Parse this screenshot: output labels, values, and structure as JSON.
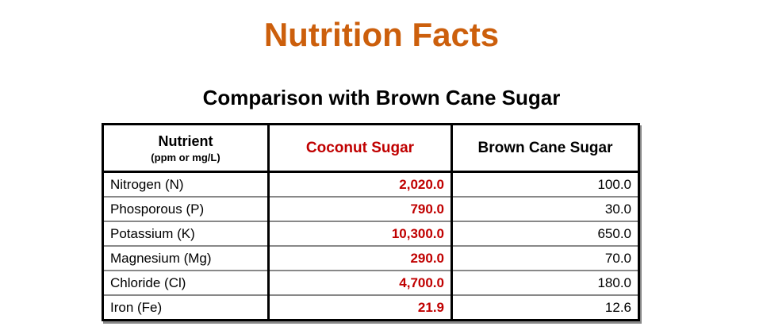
{
  "title": "Nutrition Facts",
  "subtitle": "Comparison with Brown Cane Sugar",
  "table": {
    "headers": {
      "nutrient": "Nutrient",
      "unit": "(ppm or mg/L)",
      "coconut": "Coconut Sugar",
      "brown": "Brown Cane Sugar"
    },
    "rows": [
      {
        "nutrient": "Nitrogen (N)",
        "coconut": "2,020.0",
        "brown": "100.0"
      },
      {
        "nutrient": "Phosporous (P)",
        "coconut": "790.0",
        "brown": "30.0"
      },
      {
        "nutrient": "Potassium (K)",
        "coconut": "10,300.0",
        "brown": "650.0"
      },
      {
        "nutrient": "Magnesium (Mg)",
        "coconut": "290.0",
        "brown": "70.0"
      },
      {
        "nutrient": "Chloride (Cl)",
        "coconut": "4,700.0",
        "brown": "180.0"
      },
      {
        "nutrient": "Iron (Fe)",
        "coconut": "21.9",
        "brown": "12.6"
      }
    ]
  },
  "colors": {
    "title": "#cc5f0c",
    "coconut": "#c00000"
  }
}
